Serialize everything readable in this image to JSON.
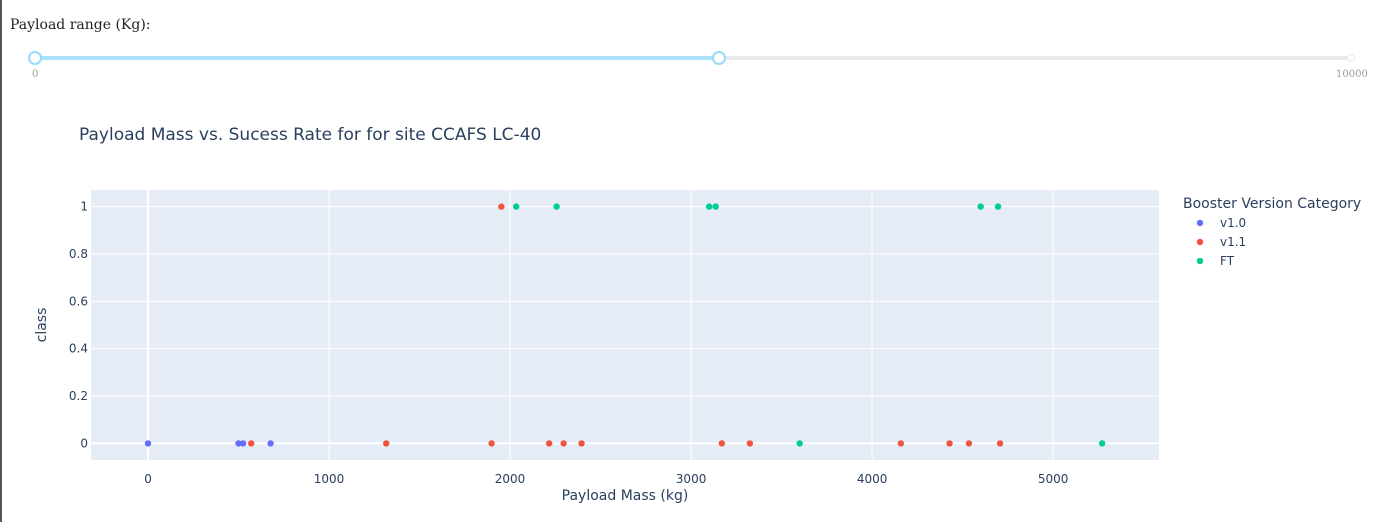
{
  "slider": {
    "label": "Payload range (Kg):",
    "min": 0,
    "max": 10000,
    "selected": [
      0,
      5200
    ],
    "min_mark": "0",
    "max_mark": "10000",
    "colors": {
      "track": "#e9e9e9",
      "fill": "#abe2fb",
      "handle": "#96dbfa"
    }
  },
  "chart_data": {
    "type": "scatter",
    "title": "Payload Mass vs. Sucess Rate for for site CCAFS LC-40",
    "xlabel": "Payload Mass (kg)",
    "ylabel": "class",
    "xlim": [
      -315,
      5585
    ],
    "ylim": [
      -0.07,
      1.07
    ],
    "xticks": [
      0,
      1000,
      2000,
      3000,
      4000,
      5000
    ],
    "yticks": [
      0,
      0.2,
      0.4,
      0.6,
      0.8,
      1
    ],
    "ytick_labels": [
      "0",
      "0.2",
      "0.4",
      "0.6",
      "0.8",
      "1"
    ],
    "grid": true,
    "plot_bg": "#e5ecf6",
    "legend": {
      "title": "Booster Version Category",
      "position": "right"
    },
    "series": [
      {
        "name": "v1.0",
        "color": "#636efa",
        "x": [
          0,
          500,
          525,
          677
        ],
        "y": [
          0,
          0,
          0,
          0
        ]
      },
      {
        "name": "v1.1",
        "color": "#ef553b",
        "x": [
          570,
          1316,
          1898,
          1952,
          2216,
          2296,
          2395,
          3170,
          3325,
          4159,
          4428,
          4535,
          4707
        ],
        "y": [
          0,
          0,
          0,
          1,
          0,
          0,
          0,
          0,
          0,
          0,
          0,
          0,
          0
        ]
      },
      {
        "name": "FT",
        "color": "#00cc96",
        "x": [
          2034,
          2257,
          3100,
          3136,
          3600,
          4600,
          4696,
          5271
        ],
        "y": [
          1,
          1,
          1,
          1,
          0,
          1,
          1,
          0
        ]
      }
    ]
  }
}
